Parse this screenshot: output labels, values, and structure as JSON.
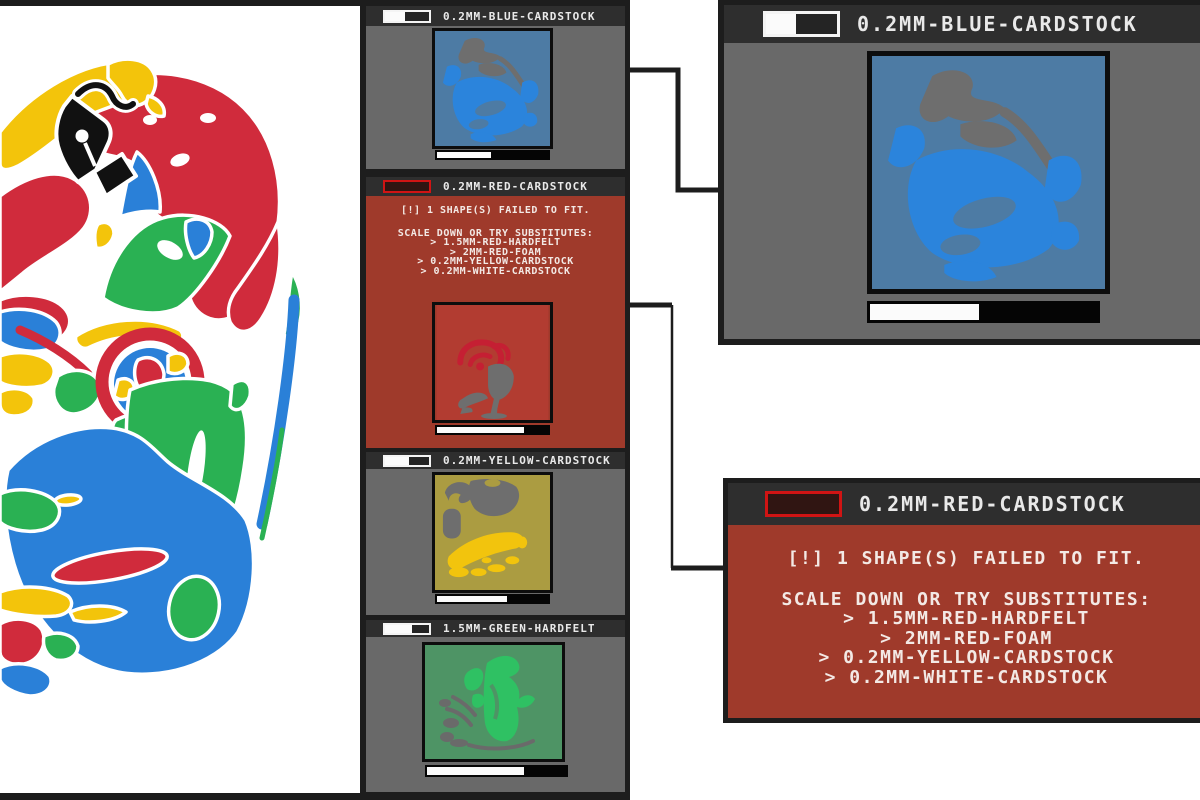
{
  "palette": {
    "accent_red": "#d02b3c",
    "accent_yellow": "#f3c40b",
    "accent_blue": "#2a80d8",
    "accent_green": "#2ab153",
    "panel_gray": "#696969",
    "header_dark": "#2e2e2e",
    "frame_dark": "#1d1d1d",
    "alert_body_red": "#9f3a2b",
    "alert_meter_outline": "#d01414",
    "sheet_blue": "#4d7ba4",
    "sheet_red": "#b23c31",
    "sheet_yellow": "#ab9c41",
    "sheet_green": "#4e9465",
    "shape_gray": "#6e6e6e",
    "meter_fill": "#fbfbfb"
  },
  "materials": [
    {
      "id": "blue",
      "title": "0.2MM-BLUE-CARDSTOCK",
      "header_progress": 45,
      "sheet_progress": 49
    },
    {
      "id": "red",
      "title": "0.2MM-RED-CARDSTOCK",
      "header_progress": 0,
      "sheet_progress": 78,
      "error": {
        "headline": "[!] 1 SHAPE(S) FAILED TO FIT.",
        "advice": "SCALE DOWN OR TRY SUBSTITUTES:",
        "substitutes": [
          "> 1.5MM-RED-HARDFELT",
          "> 2MM-RED-FOAM",
          "> 0.2MM-YELLOW-CARDSTOCK",
          "> 0.2MM-WHITE-CARDSTOCK"
        ]
      }
    },
    {
      "id": "yellow",
      "title": "0.2MM-YELLOW-CARDSTOCK",
      "header_progress": 55,
      "sheet_progress": 63
    },
    {
      "id": "green",
      "title": "1.5MM-GREEN-HARDFELT",
      "header_progress": 62,
      "sheet_progress": 70
    }
  ],
  "zoom_panels": [
    {
      "of": "blue",
      "title": "0.2MM-BLUE-CARDSTOCK",
      "header_progress": 42,
      "sheet_progress": 48
    },
    {
      "of": "red",
      "title": "0.2MM-RED-CARDSTOCK",
      "header_progress": 0
    }
  ]
}
